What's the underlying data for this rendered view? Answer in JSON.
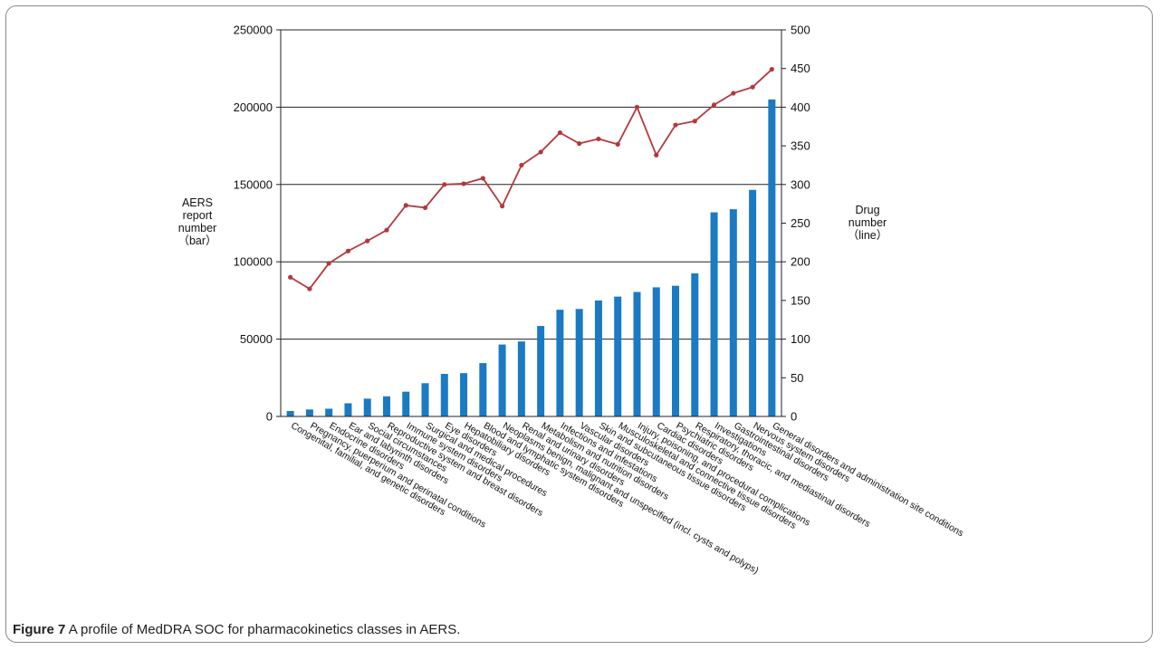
{
  "caption": {
    "label": "Figure 7",
    "text": "A profile of MedDRA SOC for pharmacokinetics classes in AERS."
  },
  "chart_data": {
    "type": "bar",
    "categories": [
      "Congenital, familial, and genetic disorders",
      "Pregnancy, puerperium and perinatal conditions",
      "Endocrine disorders",
      "Ear and labyrinth disorders",
      "Social circumstances",
      "Reproductive system and breast disorders",
      "Immune system disorders",
      "Surgical and medical procedures",
      "Eye disorders",
      "Hepatobiliary disorders",
      "Blood and lymphatic system disorders",
      "Neoplasms benign, malignant and unspecified (incl. cysts and polyps)",
      "Renal and urinary disorders",
      "Metabolism and nutrition disorders",
      "Infections and infestations",
      "Vascular disorders",
      "Skin and subcutaneous tissue disorders",
      "Musculoskeletal and connective tissue disorders",
      "Injury, poisoning, and procedural complications",
      "Cardiac disorders",
      "Psychiatric disorders",
      "Respiratory, thoracic, and mediastinal disorders",
      "Investigations",
      "Gastrointestinal disorders",
      "Nervous system disorders",
      "General disorders and administration site conditions"
    ],
    "series": [
      {
        "axis": "left",
        "kind": "bar",
        "color": "#1a7ac4",
        "values": [
          3500,
          4500,
          5000,
          8500,
          11500,
          13000,
          16000,
          21500,
          27500,
          28000,
          34500,
          46500,
          48500,
          58500,
          69000,
          69500,
          75000,
          77500,
          80500,
          83500,
          84500,
          92500,
          132000,
          134000,
          146500,
          205000
        ]
      },
      {
        "axis": "right",
        "kind": "line",
        "color": "#b5373b",
        "values": [
          180,
          165,
          198,
          214,
          227,
          241,
          273,
          270,
          300,
          301,
          308,
          272,
          325,
          342,
          367,
          353,
          359,
          352,
          400,
          338,
          377,
          382,
          403,
          418,
          426,
          449
        ]
      }
    ],
    "y_left": {
      "label_lines": [
        "AERS",
        "report",
        "number",
        "（bar）"
      ],
      "ylim": [
        0,
        250000
      ],
      "ticks": [
        0,
        50000,
        100000,
        150000,
        200000,
        250000
      ]
    },
    "y_right": {
      "label_lines": [
        "Drug",
        "number",
        "（line）"
      ],
      "ylim": [
        0,
        500
      ],
      "ticks": [
        0,
        50,
        100,
        150,
        200,
        250,
        300,
        350,
        400,
        450,
        500
      ]
    },
    "grid": true
  }
}
